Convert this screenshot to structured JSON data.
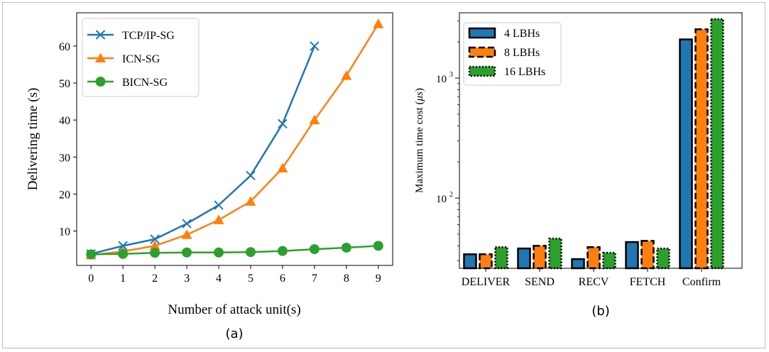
{
  "chart_data": [
    {
      "type": "line",
      "caption": "(a)",
      "xlabel": "Number of attack unit(s)",
      "ylabel": "Delivering time (s)",
      "x": [
        0,
        1,
        2,
        3,
        4,
        5,
        6,
        7,
        8,
        9
      ],
      "xlim": [
        -0.45,
        9.45
      ],
      "ylim": [
        0.7,
        69
      ],
      "xticks": [
        0,
        1,
        2,
        3,
        4,
        5,
        6,
        7,
        8,
        9
      ],
      "yticks": [
        10,
        20,
        30,
        40,
        50,
        60
      ],
      "grid": false,
      "legend_position": "top-left",
      "series": [
        {
          "name": "TCP/IP-SG",
          "marker": "x",
          "color": "#1f77b4",
          "x": [
            0,
            1,
            2,
            3,
            4,
            5,
            6,
            7
          ],
          "values": [
            3.8,
            6.0,
            7.8,
            12.0,
            17.0,
            25.0,
            39.0,
            60.0
          ]
        },
        {
          "name": "ICN-SG",
          "marker": "triangle",
          "color": "#ff7f0e",
          "x": [
            0,
            1,
            2,
            3,
            4,
            5,
            6,
            7,
            8,
            9
          ],
          "values": [
            3.5,
            4.5,
            6.0,
            9.0,
            13.0,
            18.0,
            27.0,
            40.0,
            52.0,
            66.0
          ]
        },
        {
          "name": "BICN-SG",
          "marker": "circle",
          "color": "#2ca02c",
          "x": [
            0,
            1,
            2,
            3,
            4,
            5,
            6,
            7,
            8,
            9
          ],
          "values": [
            3.7,
            3.8,
            4.1,
            4.2,
            4.2,
            4.3,
            4.6,
            5.1,
            5.5,
            6.0
          ]
        }
      ]
    },
    {
      "type": "bar",
      "caption": "(b)",
      "xlabel": "",
      "ylabel_prefix": "Maximum time cost (",
      "ylabel_mu": "μs",
      "ylabel_suffix": ")",
      "yscale": "log",
      "ylim": [
        26,
        3500
      ],
      "yticks": [
        {
          "base": "10",
          "exp": "2",
          "value": 100
        },
        {
          "base": "10",
          "exp": "3",
          "value": 1000
        }
      ],
      "grid": false,
      "legend_position": "top-left",
      "categories": [
        "DELIVER",
        "SEND",
        "RECV",
        "FETCH",
        "Confirm"
      ],
      "series": [
        {
          "name": "4 LBHs",
          "color": "#1f77b4",
          "border": "solid",
          "values": [
            34,
            38,
            31,
            43,
            2100
          ]
        },
        {
          "name": "8 LBHs",
          "color": "#ff7f0e",
          "border": "dashed",
          "values": [
            34,
            40,
            39,
            44,
            2550
          ]
        },
        {
          "name": "16 LBHs",
          "color": "#2ca02c",
          "border": "dotted",
          "values": [
            39,
            46,
            35,
            38,
            3100
          ]
        }
      ]
    }
  ]
}
